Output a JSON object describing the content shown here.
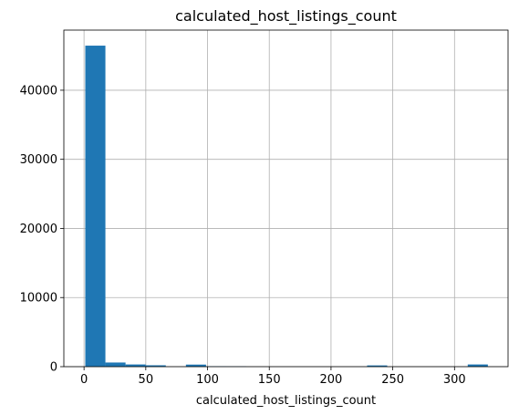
{
  "chart_data": {
    "type": "bar",
    "subtype": "histogram",
    "title": "calculated_host_listings_count",
    "xlabel": "calculated_host_listings_count",
    "ylabel": "",
    "xlim": [
      -16.35,
      343.35
    ],
    "ylim": [
      0,
      48700
    ],
    "xticks": [
      0,
      50,
      100,
      150,
      200,
      250,
      300
    ],
    "yticks": [
      0,
      10000,
      20000,
      30000,
      40000
    ],
    "grid": true,
    "bar_color": "#1f77b4",
    "bins": {
      "min": 1,
      "max": 327,
      "count": 20,
      "counts": [
        46450,
        600,
        320,
        200,
        0,
        300,
        60,
        40,
        0,
        0,
        0,
        0,
        0,
        0,
        180,
        0,
        0,
        0,
        0,
        320
      ]
    }
  }
}
